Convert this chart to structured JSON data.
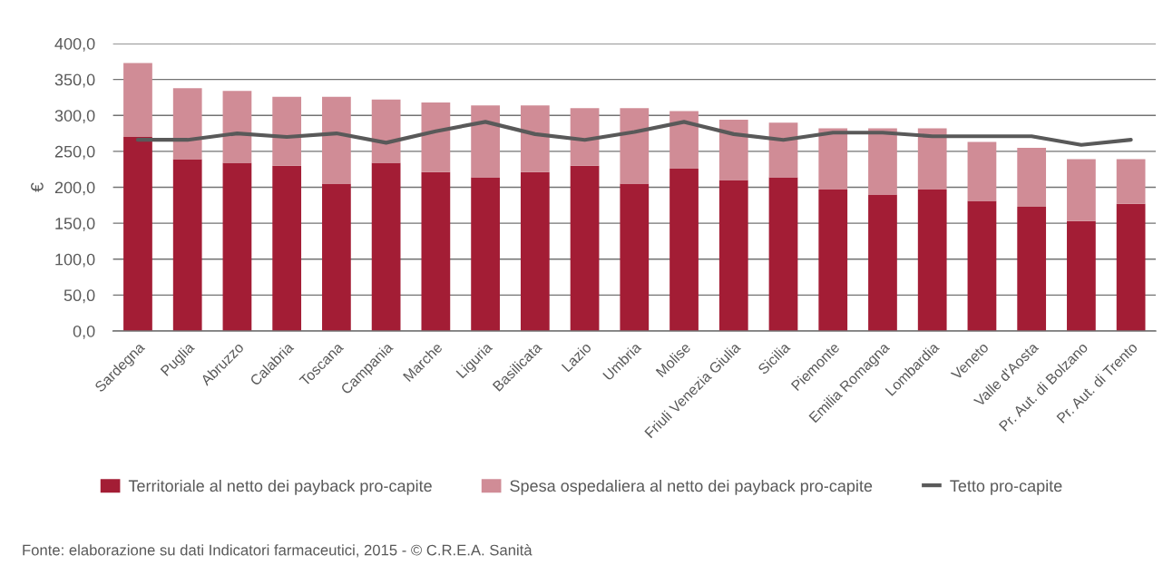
{
  "chart_data": {
    "type": "bar",
    "stacked": true,
    "ylabel": "€",
    "categories": [
      "Sardegna",
      "Puglia",
      "Abruzzo",
      "Calabria",
      "Toscana",
      "Campania",
      "Marche",
      "Liguria",
      "Basilicata",
      "Lazio",
      "Umbria",
      "Molise",
      "Friuli Venezia Giulia",
      "Sicilia",
      "Piemonte",
      "Emilia Romagna",
      "Lombardia",
      "Veneto",
      "Valle d'Aosta",
      "Pr. Aut. di Bolzano",
      "Pr. Aut. di Trento"
    ],
    "series": [
      {
        "name": "Territoriale al netto dei payback pro-capite",
        "color": "#a31d35",
        "values": [
          270,
          239,
          234,
          230,
          205,
          234,
          221,
          214,
          221,
          230,
          205,
          226,
          210,
          214,
          197,
          190,
          197,
          181,
          173,
          153,
          177
        ]
      },
      {
        "name": "Spesa ospedaliera al netto dei payback pro-capite",
        "color": "#d08c96",
        "values": [
          103,
          99,
          100,
          96,
          121,
          88,
          97,
          100,
          93,
          80,
          105,
          80,
          84,
          76,
          85,
          92,
          85,
          82,
          82,
          86,
          62
        ]
      },
      {
        "name": "Tetto pro-capite",
        "type": "line",
        "color": "#595959",
        "values": [
          266,
          266,
          275,
          270,
          275,
          262,
          278,
          291,
          274,
          266,
          277,
          291,
          274,
          266,
          276,
          276,
          271,
          271,
          271,
          259,
          266
        ]
      }
    ],
    "ylim": [
      0,
      400
    ],
    "yticks": [
      {
        "value": 0,
        "label": "0,0"
      },
      {
        "value": 50,
        "label": "50,0"
      },
      {
        "value": 100,
        "label": "100,0"
      },
      {
        "value": 150,
        "label": "150,0"
      },
      {
        "value": 200,
        "label": "200,0"
      },
      {
        "value": 250,
        "label": "250,0"
      },
      {
        "value": 300,
        "label": "300,0"
      },
      {
        "value": 350,
        "label": "350,0"
      },
      {
        "value": 400,
        "label": "400,0"
      }
    ],
    "grid": "y",
    "legend": "bottom",
    "annotations": [
      "Fonte: elaborazione su dati Indicatori farmaceutici, 2015 - © C.R.E.A. Sanità"
    ]
  }
}
